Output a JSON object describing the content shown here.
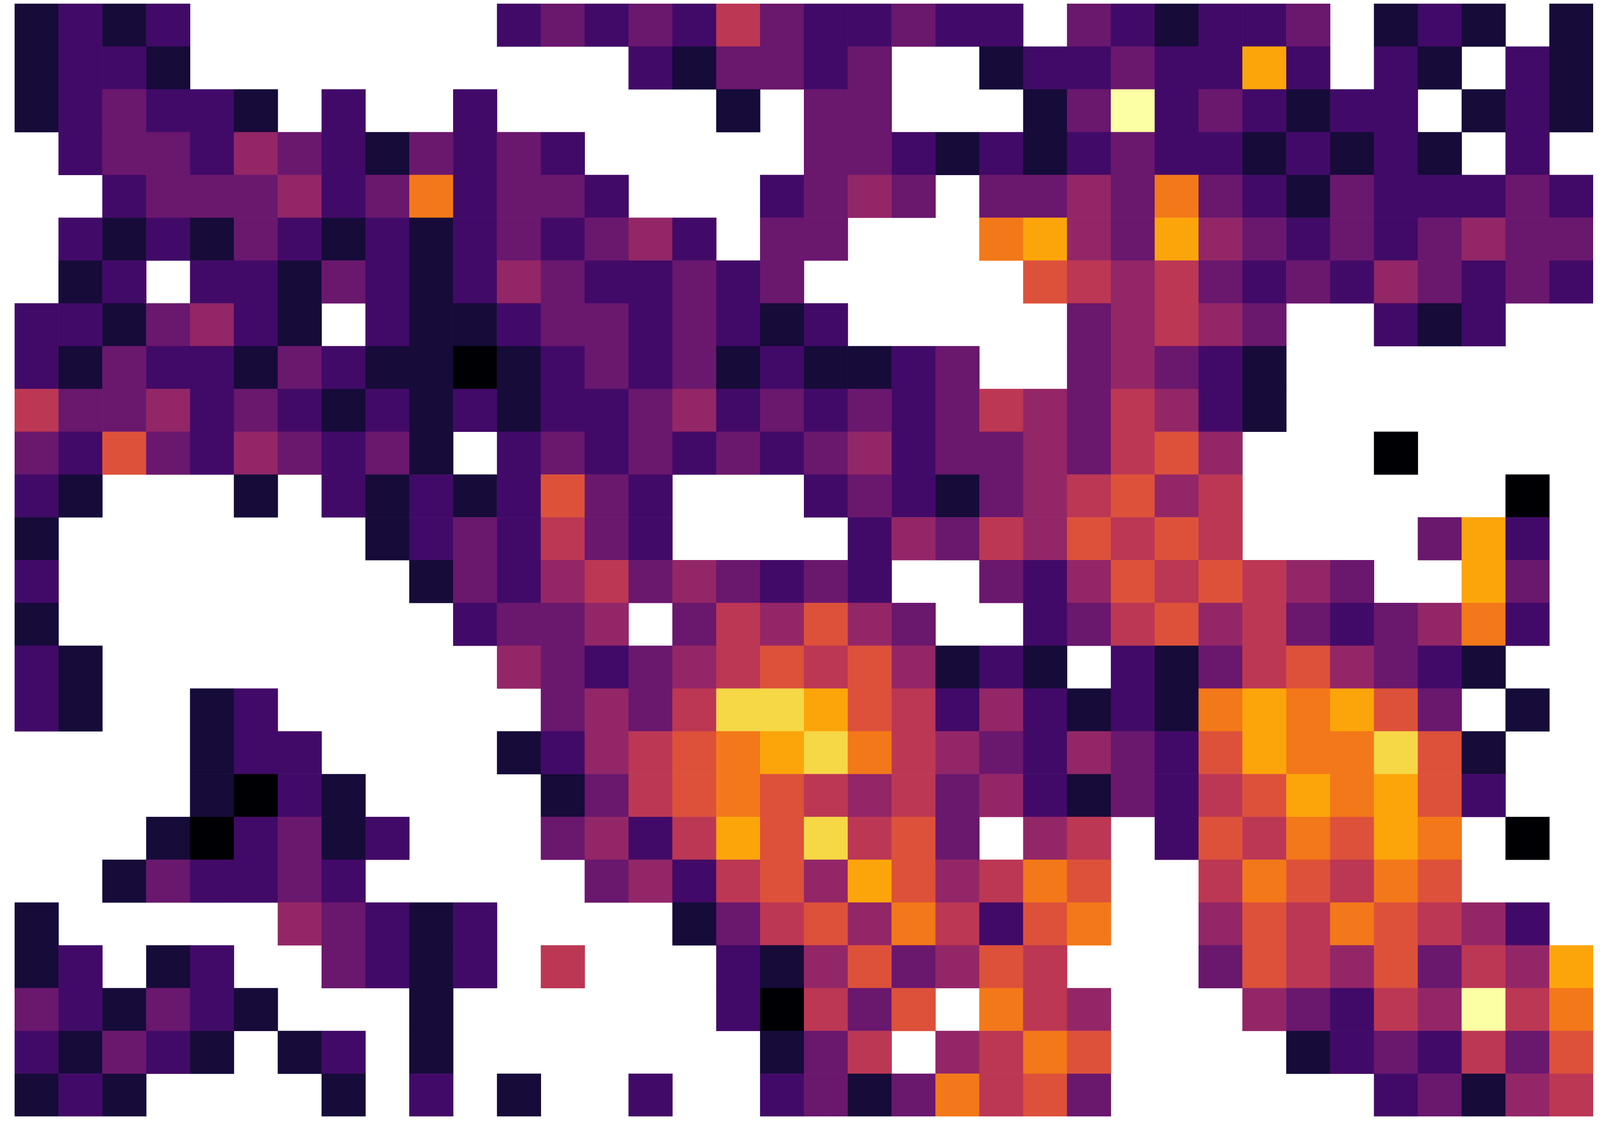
{
  "chart_data": {
    "type": "heatmap",
    "tick_labels": false,
    "color_range": [
      0,
      10
    ],
    "cells": [
      [
        1,
        2,
        1,
        2,
        null,
        null,
        null,
        null,
        null,
        null,
        null,
        2,
        3,
        2,
        3,
        2,
        5,
        3,
        2,
        2,
        3,
        2,
        2,
        null,
        3,
        2,
        1,
        2,
        2,
        3,
        null,
        1,
        2,
        1,
        null,
        1
      ],
      [
        1,
        2,
        2,
        1,
        null,
        null,
        null,
        null,
        null,
        null,
        null,
        null,
        null,
        null,
        2,
        1,
        3,
        3,
        2,
        3,
        null,
        null,
        1,
        2,
        2,
        3,
        2,
        2,
        8,
        2,
        null,
        2,
        1,
        null,
        2,
        1
      ],
      [
        1,
        2,
        3,
        2,
        2,
        1,
        null,
        2,
        null,
        null,
        2,
        null,
        null,
        null,
        null,
        null,
        1,
        null,
        3,
        3,
        null,
        null,
        null,
        1,
        3,
        10,
        2,
        3,
        2,
        1,
        2,
        2,
        null,
        1,
        2,
        1
      ],
      [
        null,
        2,
        3,
        3,
        2,
        4,
        3,
        2,
        1,
        3,
        2,
        3,
        2,
        null,
        null,
        null,
        null,
        null,
        3,
        3,
        2,
        1,
        2,
        1,
        2,
        3,
        2,
        2,
        1,
        2,
        1,
        2,
        1,
        null,
        2,
        null
      ],
      [
        null,
        null,
        2,
        3,
        3,
        3,
        4,
        2,
        3,
        7,
        2,
        3,
        3,
        2,
        null,
        null,
        null,
        2,
        3,
        4,
        3,
        null,
        3,
        3,
        4,
        3,
        7,
        3,
        2,
        1,
        3,
        2,
        2,
        2,
        3,
        2
      ],
      [
        null,
        2,
        1,
        2,
        1,
        3,
        2,
        1,
        2,
        1,
        2,
        3,
        2,
        3,
        4,
        2,
        null,
        3,
        3,
        null,
        null,
        null,
        7,
        8,
        4,
        3,
        8,
        4,
        3,
        2,
        3,
        2,
        3,
        4,
        3,
        3
      ],
      [
        null,
        1,
        2,
        null,
        2,
        2,
        1,
        3,
        2,
        1,
        2,
        4,
        3,
        2,
        2,
        3,
        2,
        3,
        null,
        null,
        null,
        null,
        null,
        6,
        5,
        4,
        5,
        3,
        2,
        3,
        2,
        4,
        3,
        2,
        3,
        2
      ],
      [
        2,
        2,
        1,
        3,
        4,
        2,
        1,
        null,
        2,
        1,
        1,
        2,
        3,
        3,
        2,
        3,
        2,
        1,
        2,
        null,
        null,
        null,
        null,
        null,
        3,
        4,
        5,
        4,
        3,
        null,
        null,
        2,
        1,
        2,
        null,
        null
      ],
      [
        2,
        1,
        3,
        2,
        2,
        1,
        3,
        2,
        1,
        1,
        0,
        1,
        2,
        3,
        2,
        3,
        1,
        2,
        1,
        1,
        2,
        3,
        null,
        null,
        3,
        4,
        3,
        2,
        1,
        null,
        null,
        null,
        null,
        null,
        null,
        null
      ],
      [
        5,
        3,
        3,
        4,
        2,
        3,
        2,
        1,
        2,
        1,
        2,
        1,
        2,
        2,
        3,
        4,
        2,
        3,
        2,
        3,
        2,
        3,
        5,
        4,
        3,
        5,
        4,
        2,
        1,
        null,
        null,
        null,
        null,
        null,
        null,
        null
      ],
      [
        3,
        2,
        6,
        3,
        2,
        4,
        3,
        2,
        3,
        1,
        null,
        2,
        3,
        2,
        3,
        2,
        3,
        2,
        3,
        4,
        2,
        3,
        3,
        4,
        3,
        5,
        6,
        4,
        null,
        null,
        null,
        0,
        null,
        null,
        null,
        null
      ],
      [
        2,
        1,
        null,
        null,
        null,
        1,
        null,
        2,
        1,
        2,
        1,
        2,
        6,
        3,
        2,
        null,
        null,
        null,
        2,
        3,
        2,
        1,
        3,
        4,
        5,
        6,
        4,
        5,
        null,
        null,
        null,
        null,
        null,
        null,
        0,
        null
      ],
      [
        1,
        null,
        null,
        null,
        null,
        null,
        null,
        null,
        1,
        2,
        3,
        2,
        5,
        3,
        2,
        null,
        null,
        null,
        null,
        2,
        4,
        3,
        5,
        4,
        6,
        5,
        6,
        5,
        null,
        null,
        null,
        null,
        3,
        8,
        2,
        null
      ],
      [
        2,
        null,
        null,
        null,
        null,
        null,
        null,
        null,
        null,
        1,
        3,
        2,
        4,
        5,
        3,
        4,
        3,
        2,
        3,
        2,
        null,
        null,
        3,
        2,
        4,
        6,
        5,
        6,
        5,
        4,
        3,
        null,
        null,
        8,
        3,
        null
      ],
      [
        1,
        null,
        null,
        null,
        null,
        null,
        null,
        null,
        null,
        null,
        2,
        3,
        3,
        4,
        null,
        3,
        5,
        4,
        6,
        4,
        3,
        null,
        null,
        2,
        3,
        5,
        6,
        4,
        5,
        3,
        2,
        3,
        4,
        7,
        2,
        null
      ],
      [
        2,
        1,
        null,
        null,
        null,
        null,
        null,
        null,
        null,
        null,
        null,
        4,
        3,
        2,
        3,
        4,
        5,
        6,
        5,
        6,
        4,
        1,
        2,
        1,
        null,
        2,
        1,
        3,
        5,
        6,
        4,
        3,
        2,
        1,
        null,
        null
      ],
      [
        2,
        1,
        null,
        null,
        1,
        2,
        null,
        null,
        null,
        null,
        null,
        null,
        3,
        4,
        3,
        5,
        9,
        9,
        8,
        6,
        5,
        2,
        4,
        2,
        1,
        2,
        1,
        7,
        8,
        7,
        8,
        6,
        3,
        null,
        1,
        null
      ],
      [
        null,
        null,
        null,
        null,
        1,
        2,
        2,
        null,
        null,
        null,
        null,
        1,
        2,
        4,
        5,
        6,
        7,
        8,
        9,
        7,
        5,
        4,
        3,
        2,
        4,
        3,
        2,
        6,
        8,
        7,
        7,
        9,
        6,
        1,
        null,
        null
      ],
      [
        null,
        null,
        null,
        null,
        1,
        0,
        2,
        1,
        null,
        null,
        null,
        null,
        1,
        3,
        5,
        6,
        7,
        6,
        5,
        4,
        5,
        3,
        4,
        2,
        1,
        3,
        2,
        5,
        6,
        8,
        7,
        8,
        6,
        2,
        null,
        null
      ],
      [
        null,
        null,
        null,
        1,
        0,
        2,
        3,
        1,
        2,
        null,
        null,
        null,
        3,
        4,
        2,
        5,
        8,
        6,
        9,
        5,
        6,
        3,
        null,
        4,
        5,
        null,
        2,
        6,
        5,
        7,
        6,
        8,
        7,
        null,
        0,
        null
      ],
      [
        null,
        null,
        1,
        3,
        2,
        2,
        3,
        2,
        null,
        null,
        null,
        null,
        null,
        3,
        4,
        2,
        5,
        6,
        4,
        8,
        6,
        4,
        5,
        7,
        6,
        null,
        null,
        5,
        7,
        6,
        5,
        7,
        6,
        null,
        null,
        null
      ],
      [
        1,
        null,
        null,
        null,
        null,
        null,
        4,
        3,
        2,
        1,
        2,
        null,
        null,
        null,
        null,
        1,
        3,
        5,
        6,
        4,
        7,
        5,
        2,
        6,
        7,
        null,
        null,
        4,
        6,
        5,
        7,
        6,
        5,
        4,
        2,
        null
      ],
      [
        1,
        2,
        null,
        1,
        2,
        null,
        null,
        3,
        2,
        1,
        2,
        null,
        5,
        null,
        null,
        null,
        2,
        1,
        4,
        6,
        3,
        4,
        6,
        5,
        null,
        null,
        null,
        3,
        6,
        5,
        4,
        6,
        3,
        5,
        4,
        8
      ],
      [
        3,
        2,
        1,
        3,
        2,
        1,
        null,
        null,
        null,
        1,
        null,
        null,
        null,
        null,
        null,
        null,
        2,
        0,
        5,
        3,
        6,
        null,
        7,
        5,
        4,
        null,
        null,
        null,
        4,
        3,
        2,
        5,
        4,
        10,
        5,
        7
      ],
      [
        2,
        1,
        3,
        2,
        1,
        null,
        1,
        2,
        null,
        1,
        null,
        null,
        null,
        null,
        null,
        null,
        null,
        1,
        3,
        5,
        null,
        4,
        5,
        7,
        6,
        null,
        null,
        null,
        null,
        1,
        2,
        3,
        2,
        5,
        3,
        6
      ],
      [
        1,
        2,
        1,
        null,
        null,
        null,
        null,
        1,
        null,
        2,
        null,
        1,
        null,
        null,
        2,
        null,
        null,
        2,
        3,
        1,
        3,
        7,
        5,
        6,
        3,
        null,
        null,
        null,
        null,
        null,
        null,
        2,
        3,
        1,
        4,
        5
      ]
    ]
  }
}
